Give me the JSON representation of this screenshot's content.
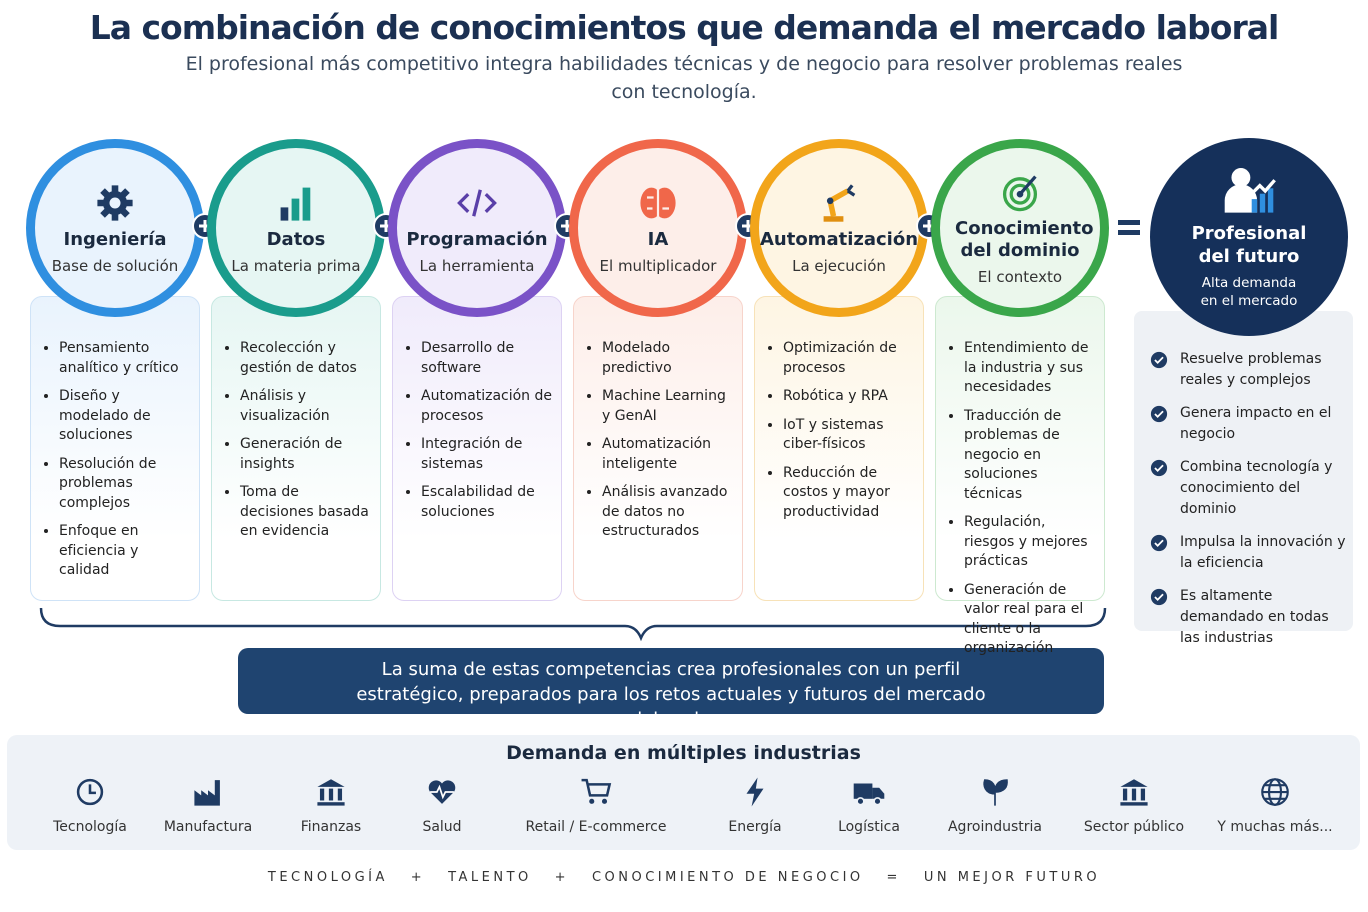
{
  "header": {
    "title": "La combinación de conocimientos que demanda el mercado laboral",
    "subtitle": "El profesional más competitivo integra habilidades técnicas y de negocio para resolver problemas reales con tecnología."
  },
  "pillars": [
    {
      "title": "Ingeniería",
      "subtitle": "Base de solución",
      "items": [
        "Pensamiento analítico y crítico",
        "Diseño y modelado de soluciones",
        "Resolución de problemas complejos",
        "Enfoque en eficiencia y calidad"
      ]
    },
    {
      "title": "Datos",
      "subtitle": "La materia prima",
      "items": [
        "Recolección y gestión de datos",
        "Análisis y visualización",
        "Generación de insights",
        "Toma de decisiones basada en evidencia"
      ]
    },
    {
      "title": "Programación",
      "subtitle": "La herramienta",
      "items": [
        "Desarrollo de software",
        "Automatización de procesos",
        "Integración de sistemas",
        "Escalabilidad de soluciones"
      ]
    },
    {
      "title": "IA",
      "subtitle": "El multiplicador",
      "items": [
        "Modelado predictivo",
        "Machine Learning y GenAI",
        "Automatización inteligente",
        "Análisis avanzado de datos no estructurados"
      ]
    },
    {
      "title": "Automatización",
      "subtitle": "La ejecución",
      "items": [
        "Optimización de procesos",
        "Robótica y RPA",
        "IoT y sistemas ciber-físicos",
        "Reducción de costos y mayor productividad"
      ]
    },
    {
      "title": "Conocimiento del dominio",
      "subtitle": "El contexto",
      "items": [
        "Entendimiento de la industria y sus necesidades",
        "Traducción de problemas de negocio en soluciones técnicas",
        "Regulación, riesgos y mejores prácticas",
        "Generación de valor real para el cliente o la organización"
      ]
    }
  ],
  "result": {
    "title": "Profesional del futuro",
    "subtitle": "Alta demanda en el mercado",
    "items": [
      "Resuelve problemas reales y complejos",
      "Genera impacto en el negocio",
      "Combina tecnología y conocimiento del dominio",
      "Impulsa la innovación y la eficiencia",
      "Es altamente demandado en todas las industrias"
    ]
  },
  "summary": "La suma de estas competencias crea profesionales con un perfil estratégico, preparados para los retos actuales y futuros del mercado laboral.",
  "industries": {
    "title": "Demanda en múltiples industrias",
    "items": [
      "Tecnología",
      "Manufactura",
      "Finanzas",
      "Salud",
      "Retail / E-commerce",
      "Energía",
      "Logística",
      "Agroindustria",
      "Sector público",
      "Y muchas más..."
    ]
  },
  "footer": "TECNOLOGÍA   +   TALENTO   +   CONOCIMIENTO DE NEGOCIO   =   UN MEJOR FUTURO"
}
